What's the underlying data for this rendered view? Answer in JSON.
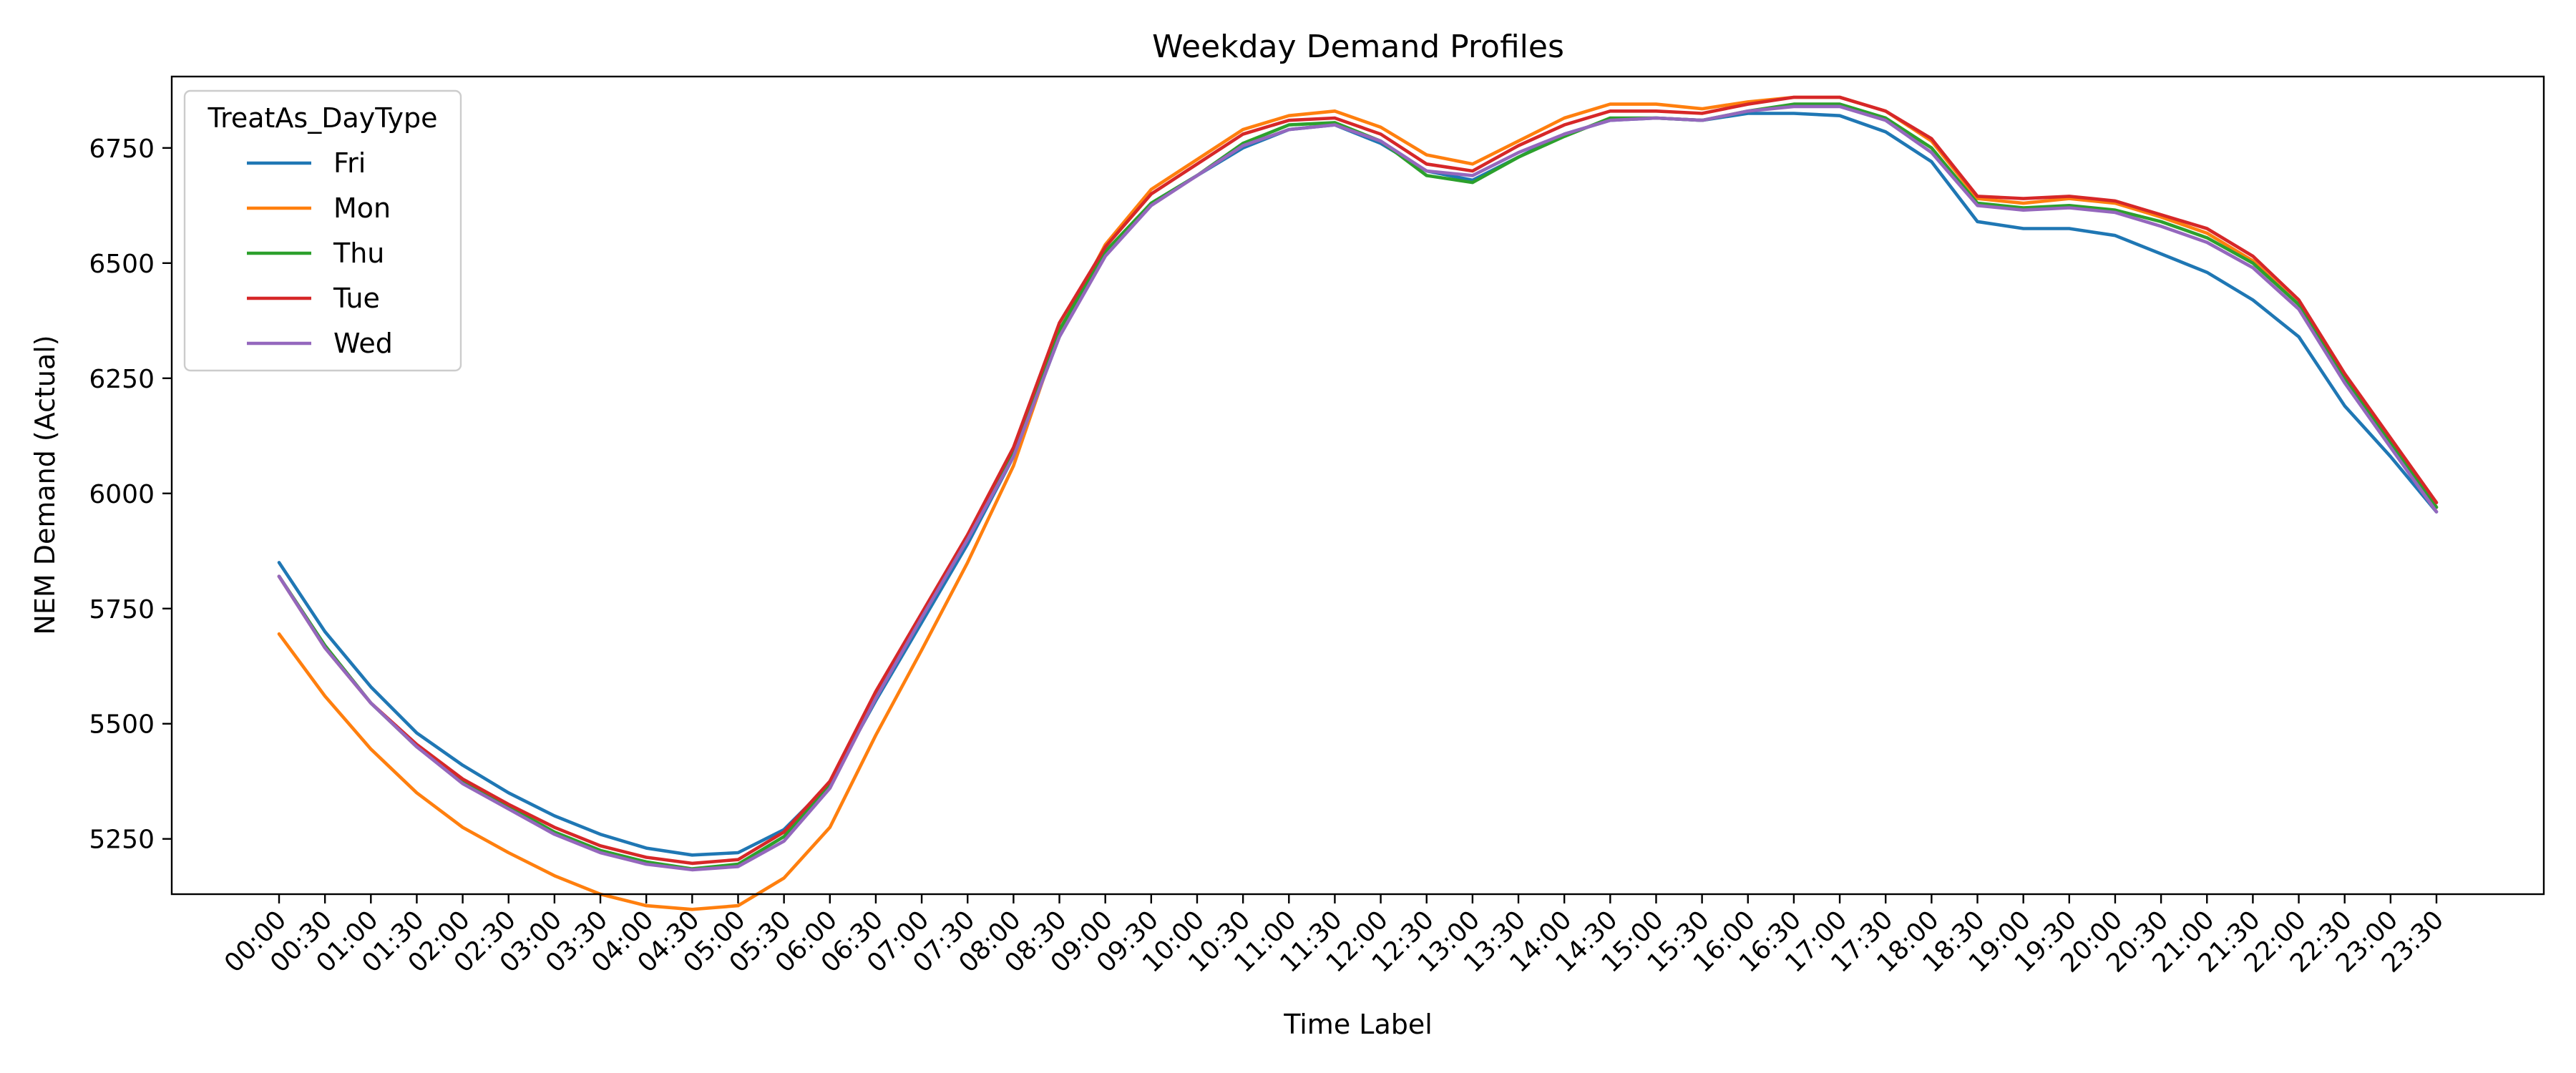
{
  "chart_data": {
    "type": "line",
    "title": "Weekday Demand Profiles",
    "xlabel": "Time Label",
    "ylabel": "NEM Demand (Actual)",
    "x": [
      "00:00",
      "00:30",
      "01:00",
      "01:30",
      "02:00",
      "02:30",
      "03:00",
      "03:30",
      "04:00",
      "04:30",
      "05:00",
      "05:30",
      "06:00",
      "06:30",
      "07:00",
      "07:30",
      "08:00",
      "08:30",
      "09:00",
      "09:30",
      "10:00",
      "10:30",
      "11:00",
      "11:30",
      "12:00",
      "12:30",
      "13:00",
      "13:30",
      "14:00",
      "14:30",
      "15:00",
      "15:30",
      "16:00",
      "16:30",
      "17:00",
      "17:30",
      "18:00",
      "18:30",
      "19:00",
      "19:30",
      "20:00",
      "20:30",
      "21:00",
      "21:30",
      "22:00",
      "22:30",
      "23:00",
      "23:30"
    ],
    "ylim": [
      5130,
      6905
    ],
    "yticks": [
      5250,
      5500,
      5750,
      6000,
      6250,
      6500,
      6750
    ],
    "grid": false,
    "legend": {
      "title": "TreatAs_DayType",
      "position": "top-left"
    },
    "series": [
      {
        "name": "Fri",
        "color": "#1f77b4",
        "values": [
          5850,
          5700,
          5580,
          5480,
          5410,
          5350,
          5300,
          5260,
          5230,
          5215,
          5220,
          5270,
          5370,
          5550,
          5720,
          5890,
          6080,
          6340,
          6520,
          6630,
          6690,
          6750,
          6790,
          6800,
          6760,
          6700,
          6680,
          6730,
          6780,
          6810,
          6815,
          6810,
          6825,
          6825,
          6820,
          6785,
          6720,
          6590,
          6575,
          6575,
          6560,
          6520,
          6480,
          6420,
          6340,
          6190,
          6080,
          5960
        ]
      },
      {
        "name": "Mon",
        "color": "#ff7f0e",
        "values": [
          5695,
          5560,
          5445,
          5350,
          5275,
          5220,
          5170,
          5130,
          5105,
          5097,
          5105,
          5165,
          5275,
          5475,
          5660,
          5850,
          6060,
          6350,
          6540,
          6660,
          6725,
          6790,
          6820,
          6830,
          6795,
          6735,
          6715,
          6765,
          6815,
          6845,
          6845,
          6835,
          6850,
          6860,
          6860,
          6830,
          6765,
          6640,
          6630,
          6640,
          6630,
          6600,
          6565,
          6505,
          6410,
          6250,
          6110,
          5970
        ]
      },
      {
        "name": "Thu",
        "color": "#2ca02c",
        "values": [
          5820,
          5670,
          5545,
          5450,
          5375,
          5320,
          5265,
          5225,
          5200,
          5185,
          5195,
          5255,
          5365,
          5560,
          5730,
          5905,
          6090,
          6355,
          6525,
          6630,
          6690,
          6760,
          6800,
          6805,
          6765,
          6690,
          6675,
          6730,
          6775,
          6815,
          6815,
          6810,
          6830,
          6845,
          6845,
          6815,
          6750,
          6630,
          6620,
          6625,
          6615,
          6590,
          6555,
          6500,
          6410,
          6250,
          6110,
          5970
        ]
      },
      {
        "name": "Tue",
        "color": "#d62728",
        "values": [
          5820,
          5665,
          5545,
          5455,
          5380,
          5325,
          5275,
          5235,
          5210,
          5197,
          5205,
          5265,
          5375,
          5570,
          5740,
          5910,
          6100,
          6370,
          6535,
          6650,
          6715,
          6780,
          6810,
          6815,
          6780,
          6715,
          6700,
          6755,
          6800,
          6830,
          6830,
          6825,
          6845,
          6860,
          6860,
          6830,
          6770,
          6645,
          6640,
          6645,
          6635,
          6605,
          6575,
          6515,
          6420,
          6260,
          6120,
          5980
        ]
      },
      {
        "name": "Wed",
        "color": "#9467bd",
        "values": [
          5820,
          5665,
          5545,
          5450,
          5370,
          5315,
          5260,
          5220,
          5195,
          5183,
          5190,
          5245,
          5360,
          5555,
          5730,
          5900,
          6080,
          6340,
          6515,
          6625,
          6690,
          6755,
          6790,
          6800,
          6765,
          6700,
          6690,
          6740,
          6780,
          6810,
          6815,
          6810,
          6830,
          6840,
          6840,
          6810,
          6740,
          6625,
          6615,
          6620,
          6610,
          6580,
          6545,
          6490,
          6400,
          6240,
          6100,
          5960
        ]
      }
    ]
  }
}
